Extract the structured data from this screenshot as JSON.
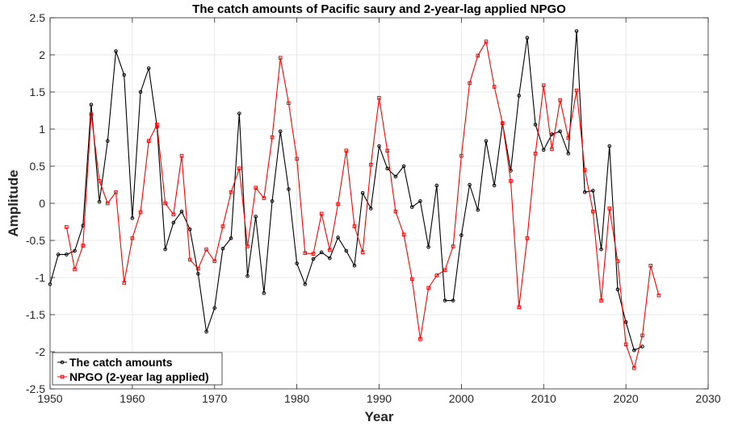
{
  "chart_data": {
    "type": "line",
    "title": "The catch amounts of Pacific saury and 2-year-lag applied NPGO",
    "xlabel": "Year",
    "ylabel": "Amplitude",
    "xlim": [
      1950,
      2030
    ],
    "ylim": [
      -2.5,
      2.5
    ],
    "xticks": [
      1950,
      1960,
      1970,
      1980,
      1990,
      2000,
      2010,
      2020,
      2030
    ],
    "yticks": [
      -2.5,
      -2,
      -1.5,
      -1,
      -0.5,
      0,
      0.5,
      1,
      1.5,
      2,
      2.5
    ],
    "xtick_labels": [
      "1950",
      "1960",
      "1970",
      "1980",
      "1990",
      "2000",
      "2010",
      "2020",
      "2030"
    ],
    "ytick_labels": [
      "-2.5",
      "-2",
      "-1.5",
      "-1",
      "-0.5",
      "0",
      "0.5",
      "1",
      "1.5",
      "2",
      "2.5"
    ],
    "grid": true,
    "legend_position": "bottom-left",
    "series": [
      {
        "name": "The catch amounts",
        "color": "#000000",
        "marker": "circle",
        "x": [
          1950,
          1951,
          1952,
          1953,
          1954,
          1955,
          1956,
          1957,
          1958,
          1959,
          1960,
          1961,
          1962,
          1963,
          1964,
          1965,
          1966,
          1967,
          1968,
          1969,
          1970,
          1971,
          1972,
          1973,
          1974,
          1975,
          1976,
          1977,
          1978,
          1979,
          1980,
          1981,
          1982,
          1983,
          1984,
          1985,
          1986,
          1987,
          1988,
          1989,
          1990,
          1991,
          1992,
          1993,
          1994,
          1995,
          1996,
          1997,
          1998,
          1999,
          2000,
          2001,
          2002,
          2003,
          2004,
          2005,
          2006,
          2007,
          2008,
          2009,
          2010,
          2011,
          2012,
          2013,
          2014,
          2015,
          2016,
          2017,
          2018,
          2019,
          2020,
          2021,
          2022
        ],
        "y": [
          -1.09,
          -0.69,
          -0.69,
          -0.64,
          -0.3,
          1.33,
          0.02,
          0.84,
          2.05,
          1.73,
          -0.2,
          1.5,
          1.82,
          1.03,
          -0.62,
          -0.26,
          -0.11,
          -0.35,
          -0.95,
          -1.73,
          -1.41,
          -0.61,
          -0.47,
          1.21,
          -0.98,
          -0.18,
          -1.21,
          0.03,
          0.97,
          0.19,
          -0.81,
          -1.09,
          -0.75,
          -0.66,
          -0.74,
          -0.46,
          -0.64,
          -0.84,
          0.14,
          -0.07,
          0.77,
          0.47,
          0.36,
          0.5,
          -0.05,
          0.03,
          -0.59,
          0.24,
          -1.31,
          -1.31,
          -0.43,
          0.25,
          -0.09,
          0.84,
          0.24,
          1.08,
          0.44,
          1.45,
          2.23,
          1.06,
          0.72,
          0.93,
          0.97,
          0.67,
          2.32,
          0.15,
          0.17,
          -0.62,
          0.77,
          -1.16,
          -1.6,
          -1.98,
          -1.93
        ]
      },
      {
        "name": "NPGO (2-year lag applied)",
        "color": "#ff0000",
        "marker": "square",
        "x": [
          1952,
          1953,
          1954,
          1955,
          1956,
          1957,
          1958,
          1959,
          1960,
          1961,
          1962,
          1963,
          1964,
          1965,
          1966,
          1967,
          1968,
          1969,
          1970,
          1971,
          1972,
          1973,
          1974,
          1975,
          1976,
          1977,
          1978,
          1979,
          1980,
          1981,
          1982,
          1983,
          1984,
          1985,
          1986,
          1987,
          1988,
          1989,
          1990,
          1991,
          1992,
          1993,
          1994,
          1995,
          1996,
          1997,
          1998,
          1999,
          2000,
          2001,
          2002,
          2003,
          2004,
          2005,
          2006,
          2007,
          2008,
          2009,
          2010,
          2011,
          2012,
          2013,
          2014,
          2015,
          2016,
          2017,
          2018,
          2019,
          2020,
          2021,
          2022,
          2023,
          2024
        ],
        "y": [
          -0.32,
          -0.89,
          -0.57,
          1.2,
          0.3,
          0.0,
          0.15,
          -1.07,
          -0.47,
          -0.12,
          0.84,
          1.06,
          0.0,
          -0.15,
          0.64,
          -0.76,
          -0.88,
          -0.62,
          -0.78,
          -0.31,
          0.15,
          0.47,
          -0.58,
          0.21,
          0.07,
          0.89,
          1.96,
          1.35,
          0.6,
          -0.67,
          -0.68,
          -0.14,
          -0.63,
          -0.01,
          0.71,
          -0.31,
          -0.66,
          0.52,
          1.42,
          0.71,
          -0.11,
          -0.42,
          -1.02,
          -1.83,
          -1.14,
          -0.97,
          -0.9,
          -0.58,
          0.64,
          1.62,
          1.99,
          2.18,
          1.57,
          1.08,
          0.3,
          -1.4,
          -0.47,
          0.67,
          1.59,
          0.73,
          1.39,
          0.88,
          1.52,
          0.45,
          -0.11,
          -1.31,
          -0.07,
          -0.78,
          -1.9,
          -2.22,
          -1.78,
          -0.84,
          -1.24
        ]
      }
    ]
  }
}
